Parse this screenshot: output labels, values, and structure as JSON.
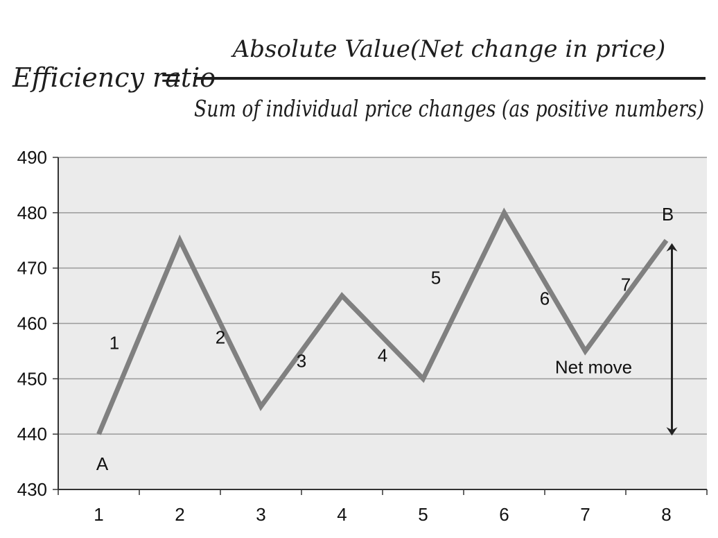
{
  "formula": {
    "lhs": "Efficiency ratio",
    "equals": "=",
    "numerator": "Absolute Value(Net change in price)",
    "denominator": "Sum of individual price changes (as positive numbers)"
  },
  "chart_data": {
    "type": "line",
    "x": [
      1,
      2,
      3,
      4,
      5,
      6,
      7,
      8
    ],
    "y": [
      440,
      475,
      445,
      465,
      450,
      480,
      455,
      475
    ],
    "xticks": [
      "1",
      "2",
      "3",
      "4",
      "5",
      "6",
      "7",
      "8"
    ],
    "yticks": [
      "490",
      "480",
      "470",
      "460",
      "450",
      "440",
      "430"
    ],
    "ylim": [
      430,
      490
    ],
    "xlim": [
      0.5,
      8.5
    ],
    "grid": "horizontal",
    "background": "#ebebeb",
    "line_color": "#808080",
    "segment_labels": [
      "1",
      "2",
      "3",
      "4",
      "5",
      "6",
      "7"
    ],
    "point_labels": {
      "start": "A",
      "end": "B"
    },
    "net_move": {
      "label": "Net move",
      "from": 440,
      "to": 475
    }
  }
}
